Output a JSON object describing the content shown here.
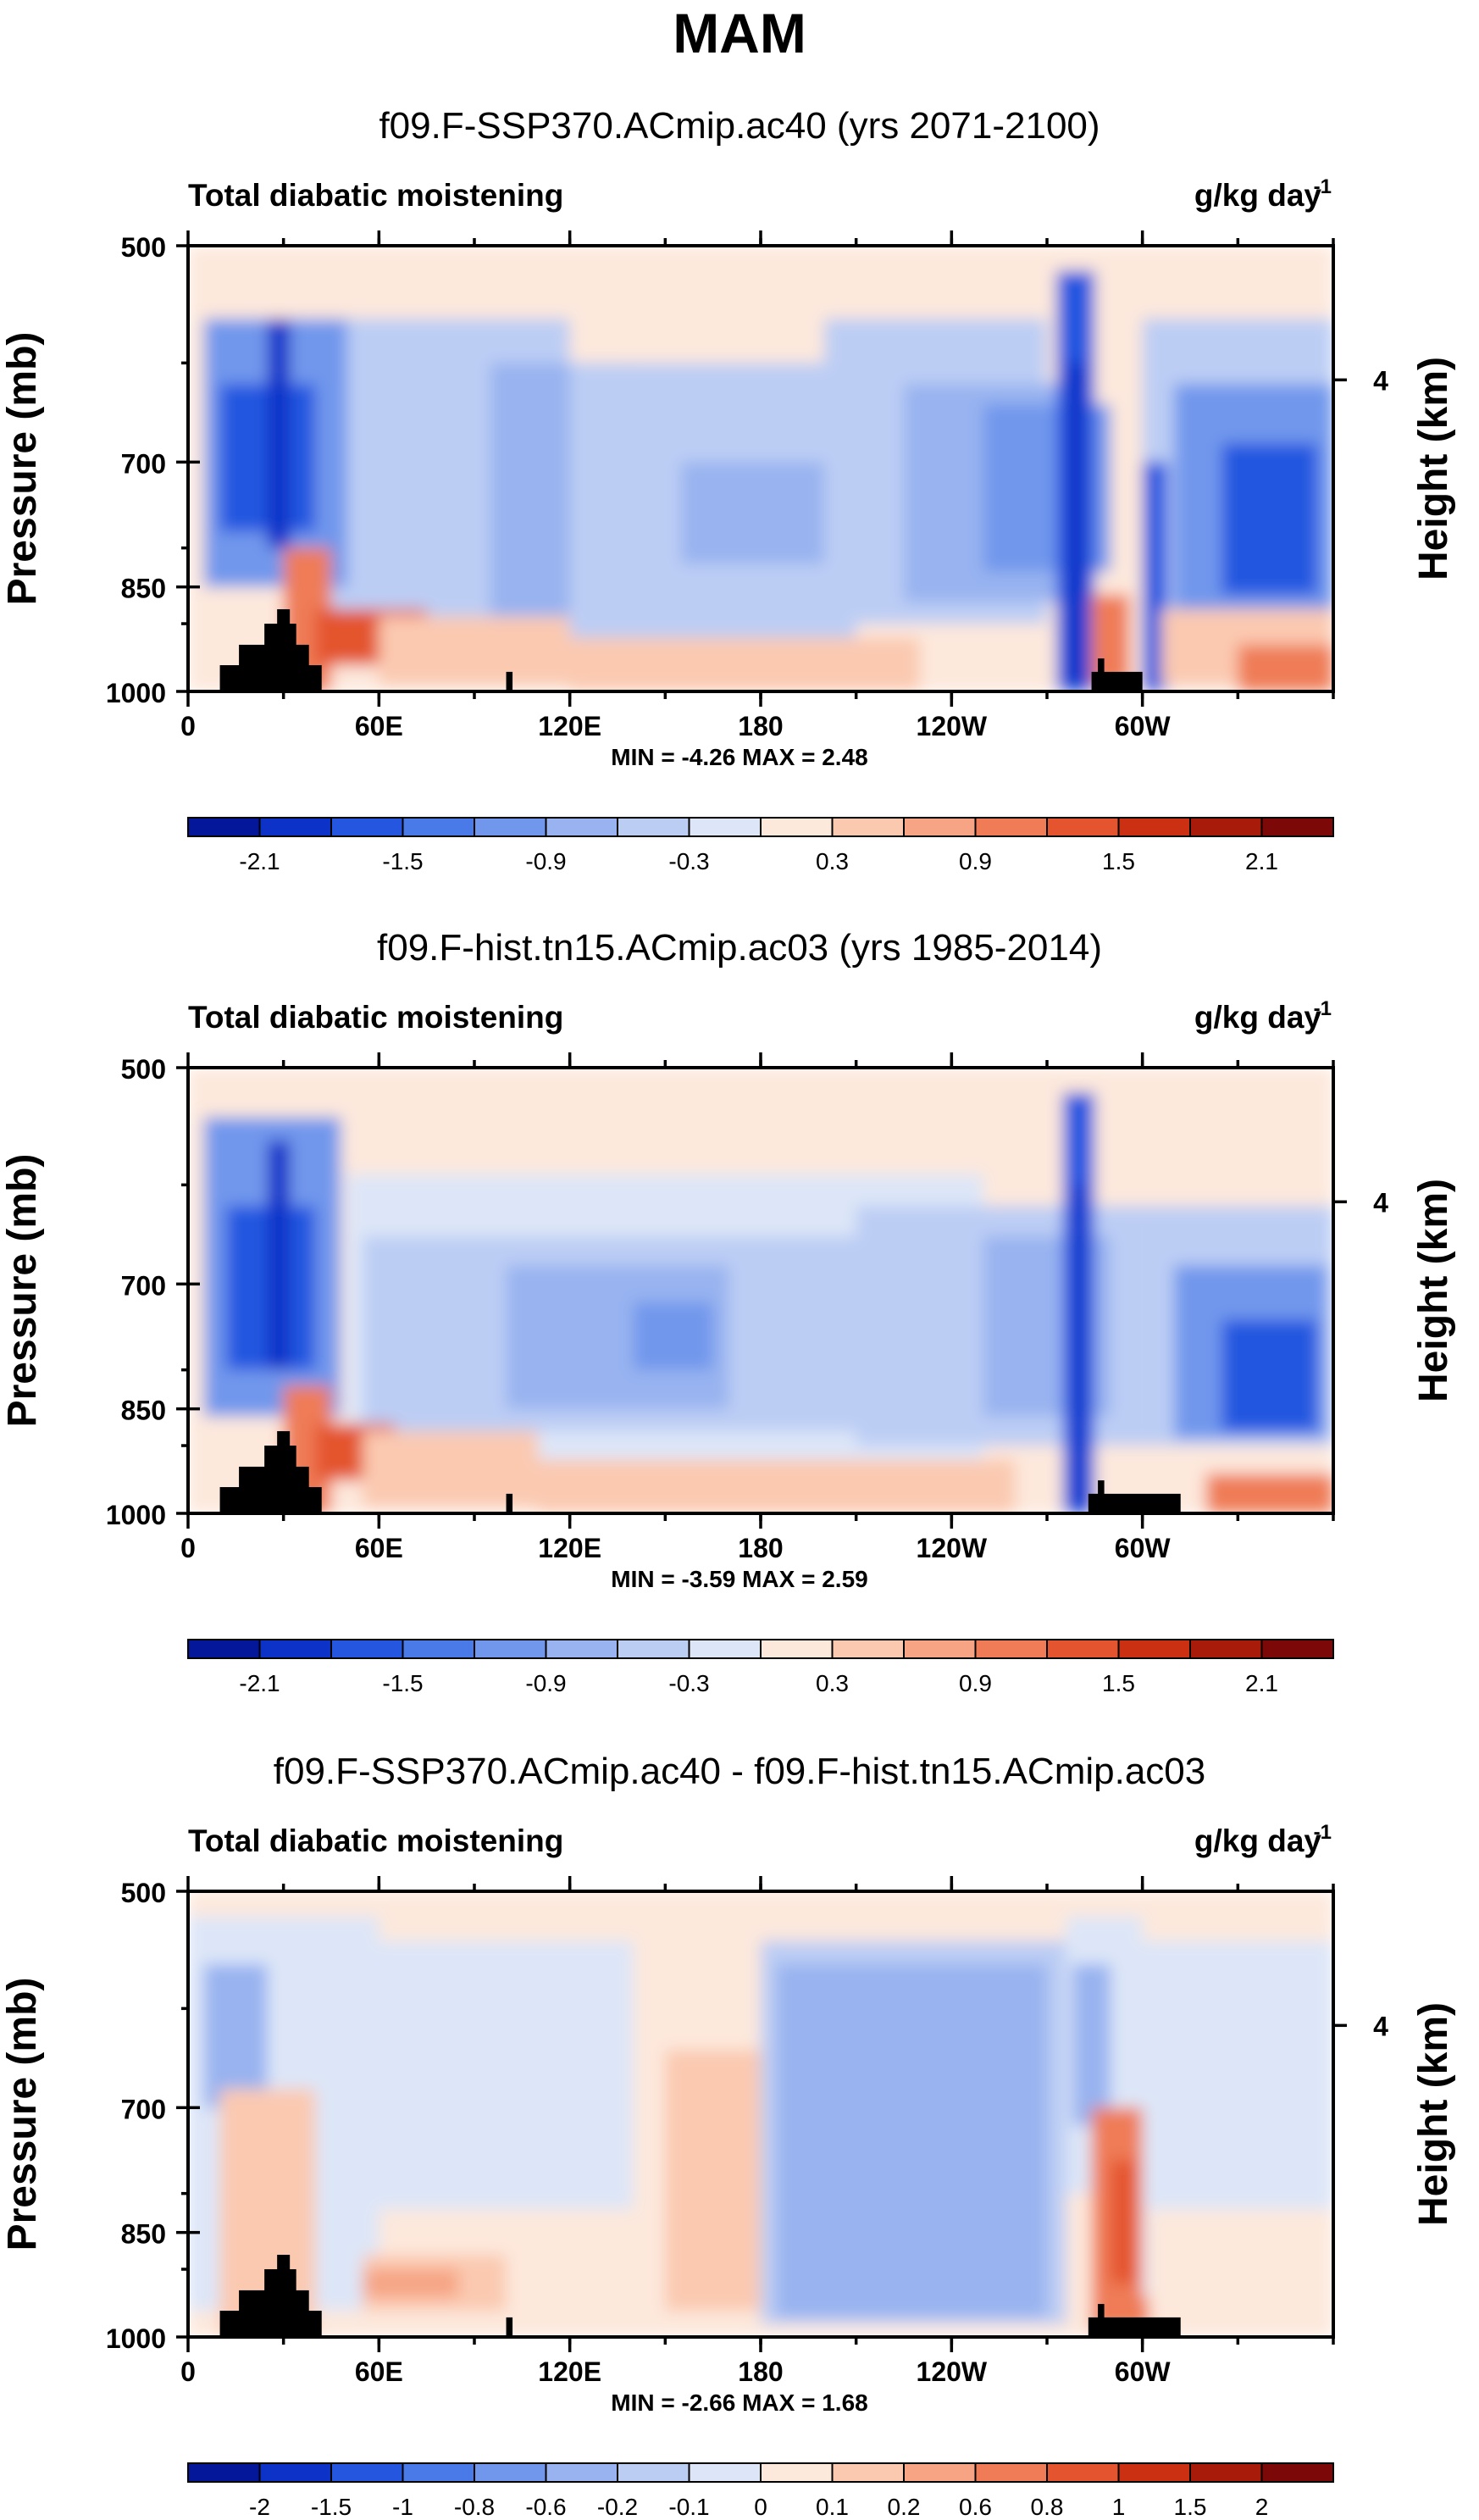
{
  "figure": {
    "title": "MAM",
    "variable_label": "Total diabatic moistening",
    "units_label": "g/kg day",
    "units_exponent": "-1"
  },
  "chart_data": [
    {
      "type": "heatmap",
      "title": "f09.F-SSP370.ACmip.ac40 (yrs 2071-2100)",
      "left_label": "Total diabatic moistening",
      "right_label": "g/kg day",
      "right_label_exp": "-1",
      "ylabel": "Pressure (mb)",
      "ylabel_right": "Height (km)",
      "yticks": [
        "500",
        "700",
        "850",
        "1000"
      ],
      "yticks_right": [
        "4"
      ],
      "xticks": [
        "0",
        "60E",
        "120E",
        "180",
        "120W",
        "60W"
      ],
      "stats_text": "MIN = -4.26  MAX =  2.48",
      "min": -4.26,
      "max": 2.48,
      "colorbar_labels": [
        "-2.1",
        "-1.5",
        "-0.9",
        "-0.3",
        "0.3",
        "0.9",
        "1.5",
        "2.1"
      ],
      "colorbar_colors": [
        "#04179a",
        "#0c32c8",
        "#2456e0",
        "#4a7ae8",
        "#7197ec",
        "#98b3f0",
        "#bccdf4",
        "#dde6f8",
        "#fde8dc",
        "#fbc9b0",
        "#f6a484",
        "#ef7c56",
        "#e4542e",
        "#cc3012",
        "#a81a0a",
        "#7c0808"
      ],
      "xlim": [
        0,
        360
      ],
      "ylim": [
        1000,
        500
      ]
    },
    {
      "type": "heatmap",
      "title": "f09.F-hist.tn15.ACmip.ac03 (yrs 1985-2014)",
      "left_label": "Total diabatic moistening",
      "right_label": "g/kg day",
      "right_label_exp": "-1",
      "ylabel": "Pressure (mb)",
      "ylabel_right": "Height (km)",
      "yticks": [
        "500",
        "700",
        "850",
        "1000"
      ],
      "yticks_right": [
        "4"
      ],
      "xticks": [
        "0",
        "60E",
        "120E",
        "180",
        "120W",
        "60W"
      ],
      "stats_text": "MIN = -3.59  MAX =  2.59",
      "min": -3.59,
      "max": 2.59,
      "colorbar_labels": [
        "-2.1",
        "-1.5",
        "-0.9",
        "-0.3",
        "0.3",
        "0.9",
        "1.5",
        "2.1"
      ],
      "colorbar_colors": [
        "#04179a",
        "#0c32c8",
        "#2456e0",
        "#4a7ae8",
        "#7197ec",
        "#98b3f0",
        "#bccdf4",
        "#dde6f8",
        "#fde8dc",
        "#fbc9b0",
        "#f6a484",
        "#ef7c56",
        "#e4542e",
        "#cc3012",
        "#a81a0a",
        "#7c0808"
      ],
      "xlim": [
        0,
        360
      ],
      "ylim": [
        1000,
        500
      ]
    },
    {
      "type": "heatmap",
      "title": "f09.F-SSP370.ACmip.ac40 - f09.F-hist.tn15.ACmip.ac03",
      "left_label": "Total diabatic moistening",
      "right_label": "g/kg day",
      "right_label_exp": "-1",
      "ylabel": "Pressure (mb)",
      "ylabel_right": "Height (km)",
      "yticks": [
        "500",
        "700",
        "850",
        "1000"
      ],
      "yticks_right": [
        "4"
      ],
      "xticks": [
        "0",
        "60E",
        "120E",
        "180",
        "120W",
        "60W"
      ],
      "stats_text": "MIN = -2.66  MAX =  1.68",
      "min": -2.66,
      "max": 1.68,
      "colorbar_labels": [
        "-2",
        "-1.5",
        "-1",
        "-0.8",
        "-0.6",
        "-0.2",
        "-0.1",
        "0",
        "0.1",
        "0.2",
        "0.6",
        "0.8",
        "1",
        "1.5",
        "2"
      ],
      "colorbar_colors": [
        "#04179a",
        "#0c32c8",
        "#2456e0",
        "#4a7ae8",
        "#7197ec",
        "#98b3f0",
        "#bccdf4",
        "#dde6f8",
        "#fde8dc",
        "#fbc9b0",
        "#f6a484",
        "#ef7c56",
        "#e4542e",
        "#cc3012",
        "#a81a0a",
        "#7c0808"
      ],
      "xlim": [
        0,
        360
      ],
      "ylim": [
        1000,
        500
      ]
    }
  ]
}
